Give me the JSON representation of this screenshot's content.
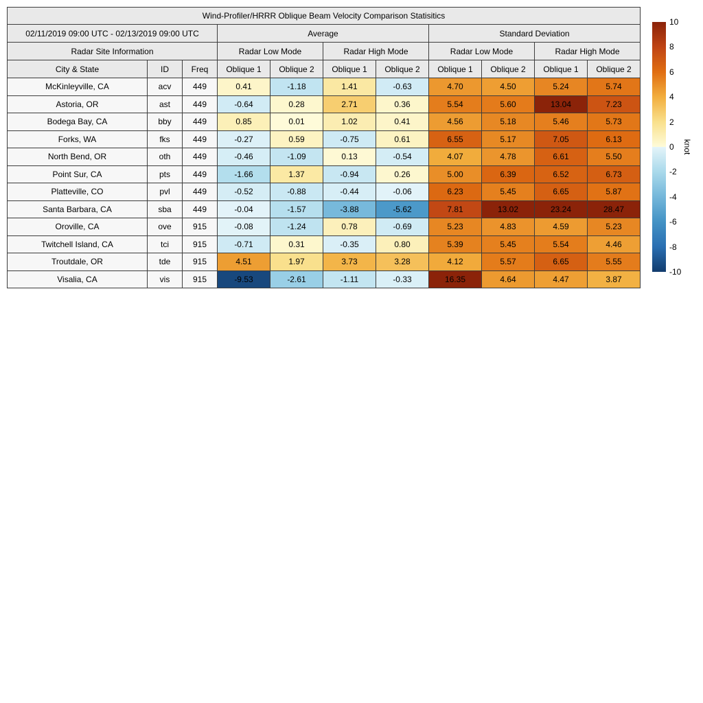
{
  "chart_data": {
    "type": "heatmap",
    "title": "Wind-Profiler/HRRR Oblique Beam Velocity Comparison Statisitics",
    "date_range": "02/11/2019 09:00 UTC - 02/13/2019 09:00 UTC",
    "group_headers": {
      "average": "Average",
      "standard_deviation": "Standard Deviation",
      "radar_site_information": "Radar Site Information",
      "radar_low_mode": "Radar Low Mode",
      "radar_high_mode": "Radar High Mode"
    },
    "column_headers": {
      "city_state": "City & State",
      "id": "ID",
      "freq": "Freq",
      "oblique1": "Oblique 1",
      "oblique2": "Oblique 2"
    },
    "value_columns": [
      "avg-low-oblique1",
      "avg-low-oblique2",
      "avg-high-oblique1",
      "avg-high-oblique2",
      "std-low-oblique1",
      "std-low-oblique2",
      "std-high-oblique1",
      "std-high-oblique2"
    ],
    "rows": [
      {
        "city": "McKinleyville, CA",
        "id": "acv",
        "freq": "449",
        "values": [
          "0.41",
          "-1.18",
          "1.41",
          "-0.63",
          "4.70",
          "4.50",
          "5.24",
          "5.74"
        ]
      },
      {
        "city": "Astoria, OR",
        "id": "ast",
        "freq": "449",
        "values": [
          "-0.64",
          "0.28",
          "2.71",
          "0.36",
          "5.54",
          "5.60",
          "13.04",
          "7.23"
        ]
      },
      {
        "city": "Bodega Bay, CA",
        "id": "bby",
        "freq": "449",
        "values": [
          "0.85",
          "0.01",
          "1.02",
          "0.41",
          "4.56",
          "5.18",
          "5.46",
          "5.73"
        ]
      },
      {
        "city": "Forks, WA",
        "id": "fks",
        "freq": "449",
        "values": [
          "-0.27",
          "0.59",
          "-0.75",
          "0.61",
          "6.55",
          "5.17",
          "7.05",
          "6.13"
        ]
      },
      {
        "city": "North Bend, OR",
        "id": "oth",
        "freq": "449",
        "values": [
          "-0.46",
          "-1.09",
          "0.13",
          "-0.54",
          "4.07",
          "4.78",
          "6.61",
          "5.50"
        ]
      },
      {
        "city": "Point Sur, CA",
        "id": "pts",
        "freq": "449",
        "values": [
          "-1.66",
          "1.37",
          "-0.94",
          "0.26",
          "5.00",
          "6.39",
          "6.52",
          "6.73"
        ]
      },
      {
        "city": "Platteville, CO",
        "id": "pvl",
        "freq": "449",
        "values": [
          "-0.52",
          "-0.88",
          "-0.44",
          "-0.06",
          "6.23",
          "5.45",
          "6.65",
          "5.87"
        ]
      },
      {
        "city": "Santa Barbara, CA",
        "id": "sba",
        "freq": "449",
        "values": [
          "-0.04",
          "-1.57",
          "-3.88",
          "-5.62",
          "7.81",
          "13.02",
          "23.24",
          "28.47"
        ]
      },
      {
        "city": "Oroville, CA",
        "id": "ove",
        "freq": "915",
        "values": [
          "-0.08",
          "-1.24",
          "0.78",
          "-0.69",
          "5.23",
          "4.83",
          "4.59",
          "5.23"
        ]
      },
      {
        "city": "Twitchell Island, CA",
        "id": "tci",
        "freq": "915",
        "values": [
          "-0.71",
          "0.31",
          "-0.35",
          "0.80",
          "5.39",
          "5.45",
          "5.54",
          "4.46"
        ]
      },
      {
        "city": "Troutdale, OR",
        "id": "tde",
        "freq": "915",
        "values": [
          "4.51",
          "1.97",
          "3.73",
          "3.28",
          "4.12",
          "5.57",
          "6.65",
          "5.55"
        ]
      },
      {
        "city": "Visalia, CA",
        "id": "vis",
        "freq": "915",
        "values": [
          "-9.53",
          "-2.61",
          "-1.11",
          "-0.33",
          "16.35",
          "4.64",
          "4.47",
          "3.87"
        ]
      }
    ],
    "colorbar": {
      "label": "knot",
      "min": -10,
      "max": 10,
      "tick_labels": [
        "10",
        "8",
        "6",
        "4",
        "2",
        "0",
        "-2",
        "-4",
        "-6",
        "-8",
        "-10"
      ]
    },
    "colormap": {
      "positive_stops": [
        {
          "v": 0,
          "c": "#fefbd9"
        },
        {
          "v": 2,
          "c": "#f9e08c"
        },
        {
          "v": 4,
          "c": "#f2ae3e"
        },
        {
          "v": 6,
          "c": "#e06e12"
        },
        {
          "v": 8,
          "c": "#bf4414"
        },
        {
          "v": 10,
          "c": "#8b2309"
        }
      ],
      "negative_stops": [
        {
          "v": 0,
          "c": "#e4f4f9"
        },
        {
          "v": -2,
          "c": "#a9d9eb"
        },
        {
          "v": -4,
          "c": "#74b7da"
        },
        {
          "v": -6,
          "c": "#4392c5"
        },
        {
          "v": -8,
          "c": "#2a6fb2"
        },
        {
          "v": -10,
          "c": "#123c6d"
        }
      ]
    },
    "styles": {
      "header_bg": "#e9e9e9",
      "label_cell_bg": "#f7f7f7",
      "border_color": "#3c3c3c",
      "text_color": "#000000"
    }
  }
}
